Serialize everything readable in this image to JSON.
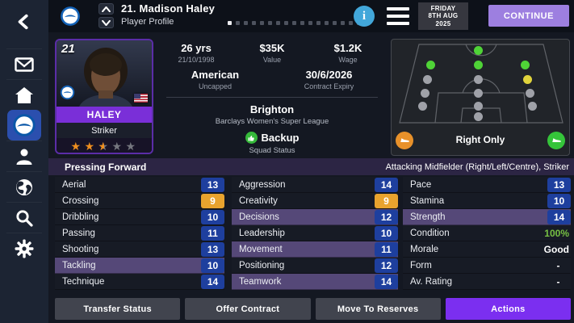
{
  "header": {
    "title": "21. Madison Haley",
    "subtitle": "Player Profile",
    "pagination": {
      "total": 17,
      "active": 1
    },
    "date_line1": "FRIDAY",
    "date_line2": "8TH AUG",
    "date_line3": "2025",
    "info_label": "i",
    "continue_label": "CONTINUE"
  },
  "sidebar": {
    "items": [
      "back",
      "inbox",
      "home",
      "club",
      "manager",
      "world",
      "search",
      "settings"
    ],
    "selected": "club"
  },
  "player_card": {
    "number": "21",
    "name": "HALEY",
    "position": "Striker",
    "stars": 2.5,
    "star_states": [
      "full",
      "full",
      "half",
      "empty",
      "empty"
    ]
  },
  "details": {
    "age_value": "26 yrs",
    "age_sub": "21/10/1998",
    "value_value": "$35K",
    "value_sub": "Value",
    "wage_value": "$1.2K",
    "wage_sub": "Wage",
    "nation_value": "American",
    "nation_sub": "Uncapped",
    "contract_value": "30/6/2026",
    "contract_sub": "Contract Expiry",
    "club_name": "Brighton",
    "club_league": "Barclays Women's Super League",
    "status_value": "Backup",
    "status_sub": "Squad Status"
  },
  "positions_panel": {
    "footedness_label": "Right Only",
    "left_foot": "weak",
    "right_foot": "strong",
    "dots": [
      {
        "pos": "ST",
        "state": "green"
      },
      {
        "pos": "AML",
        "state": "green"
      },
      {
        "pos": "AMC",
        "state": "green"
      },
      {
        "pos": "AMR",
        "state": "green"
      },
      {
        "pos": "ML",
        "state": "gray"
      },
      {
        "pos": "MC",
        "state": "gray"
      },
      {
        "pos": "MR",
        "state": "yellow"
      },
      {
        "pos": "WBL",
        "state": "gray"
      },
      {
        "pos": "DM",
        "state": "gray"
      },
      {
        "pos": "WBR",
        "state": "gray"
      },
      {
        "pos": "DL",
        "state": "gray"
      },
      {
        "pos": "DC",
        "state": "gray"
      },
      {
        "pos": "DR",
        "state": "gray"
      },
      {
        "pos": "GK",
        "state": "gray"
      }
    ]
  },
  "attributes": {
    "role": "Pressing Forward",
    "position_label": "Attacking Midfielder (Right/Left/Centre), Striker",
    "col1": [
      {
        "label": "Aerial",
        "value": "13",
        "vt": "badge",
        "tone": "normal",
        "hl": false
      },
      {
        "label": "Crossing",
        "value": "9",
        "vt": "badge",
        "tone": "low",
        "hl": false
      },
      {
        "label": "Dribbling",
        "value": "10",
        "vt": "badge",
        "tone": "normal",
        "hl": false
      },
      {
        "label": "Passing",
        "value": "11",
        "vt": "badge",
        "tone": "normal",
        "hl": false
      },
      {
        "label": "Shooting",
        "value": "13",
        "vt": "badge",
        "tone": "normal",
        "hl": false
      },
      {
        "label": "Tackling",
        "value": "10",
        "vt": "badge",
        "tone": "normal",
        "hl": true
      },
      {
        "label": "Technique",
        "value": "14",
        "vt": "badge",
        "tone": "normal",
        "hl": false
      }
    ],
    "col2": [
      {
        "label": "Aggression",
        "value": "14",
        "vt": "badge",
        "tone": "normal",
        "hl": false
      },
      {
        "label": "Creativity",
        "value": "9",
        "vt": "badge",
        "tone": "low",
        "hl": false
      },
      {
        "label": "Decisions",
        "value": "12",
        "vt": "badge",
        "tone": "normal",
        "hl": true
      },
      {
        "label": "Leadership",
        "value": "10",
        "vt": "badge",
        "tone": "normal",
        "hl": false
      },
      {
        "label": "Movement",
        "value": "11",
        "vt": "badge",
        "tone": "normal",
        "hl": true
      },
      {
        "label": "Positioning",
        "value": "12",
        "vt": "badge",
        "tone": "normal",
        "hl": false
      },
      {
        "label": "Teamwork",
        "value": "14",
        "vt": "badge",
        "tone": "normal",
        "hl": true
      }
    ],
    "col3": [
      {
        "label": "Pace",
        "value": "13",
        "vt": "badge",
        "tone": "normal",
        "hl": false
      },
      {
        "label": "Stamina",
        "value": "10",
        "vt": "badge",
        "tone": "normal",
        "hl": false
      },
      {
        "label": "Strength",
        "value": "14",
        "vt": "badge",
        "tone": "normal",
        "hl": true
      },
      {
        "label": "Condition",
        "value": "100%",
        "vt": "text",
        "tone": "green",
        "hl": false
      },
      {
        "label": "Morale",
        "value": "Good",
        "vt": "text",
        "tone": "plain",
        "hl": false
      },
      {
        "label": "Form",
        "value": "-",
        "vt": "text",
        "tone": "plain",
        "hl": false
      },
      {
        "label": "Av. Rating",
        "value": "-",
        "vt": "text",
        "tone": "plain",
        "hl": false
      }
    ]
  },
  "footer": {
    "buttons": [
      {
        "label": "Transfer Status",
        "primary": false
      },
      {
        "label": "Offer Contract",
        "primary": false
      },
      {
        "label": "Move To Reserves",
        "primary": false
      },
      {
        "label": "Actions",
        "primary": true
      }
    ]
  },
  "colors": {
    "accent_purple": "#7b2ff0",
    "continue_purple": "#9d7fe0",
    "badge_blue": "#1e3f9e",
    "badge_low_orange": "#e8a32e",
    "condition_green": "#76c043",
    "pos_green": "#4fd337",
    "pos_yellow": "#e0d33c",
    "pos_gray": "#9fa1a8"
  }
}
